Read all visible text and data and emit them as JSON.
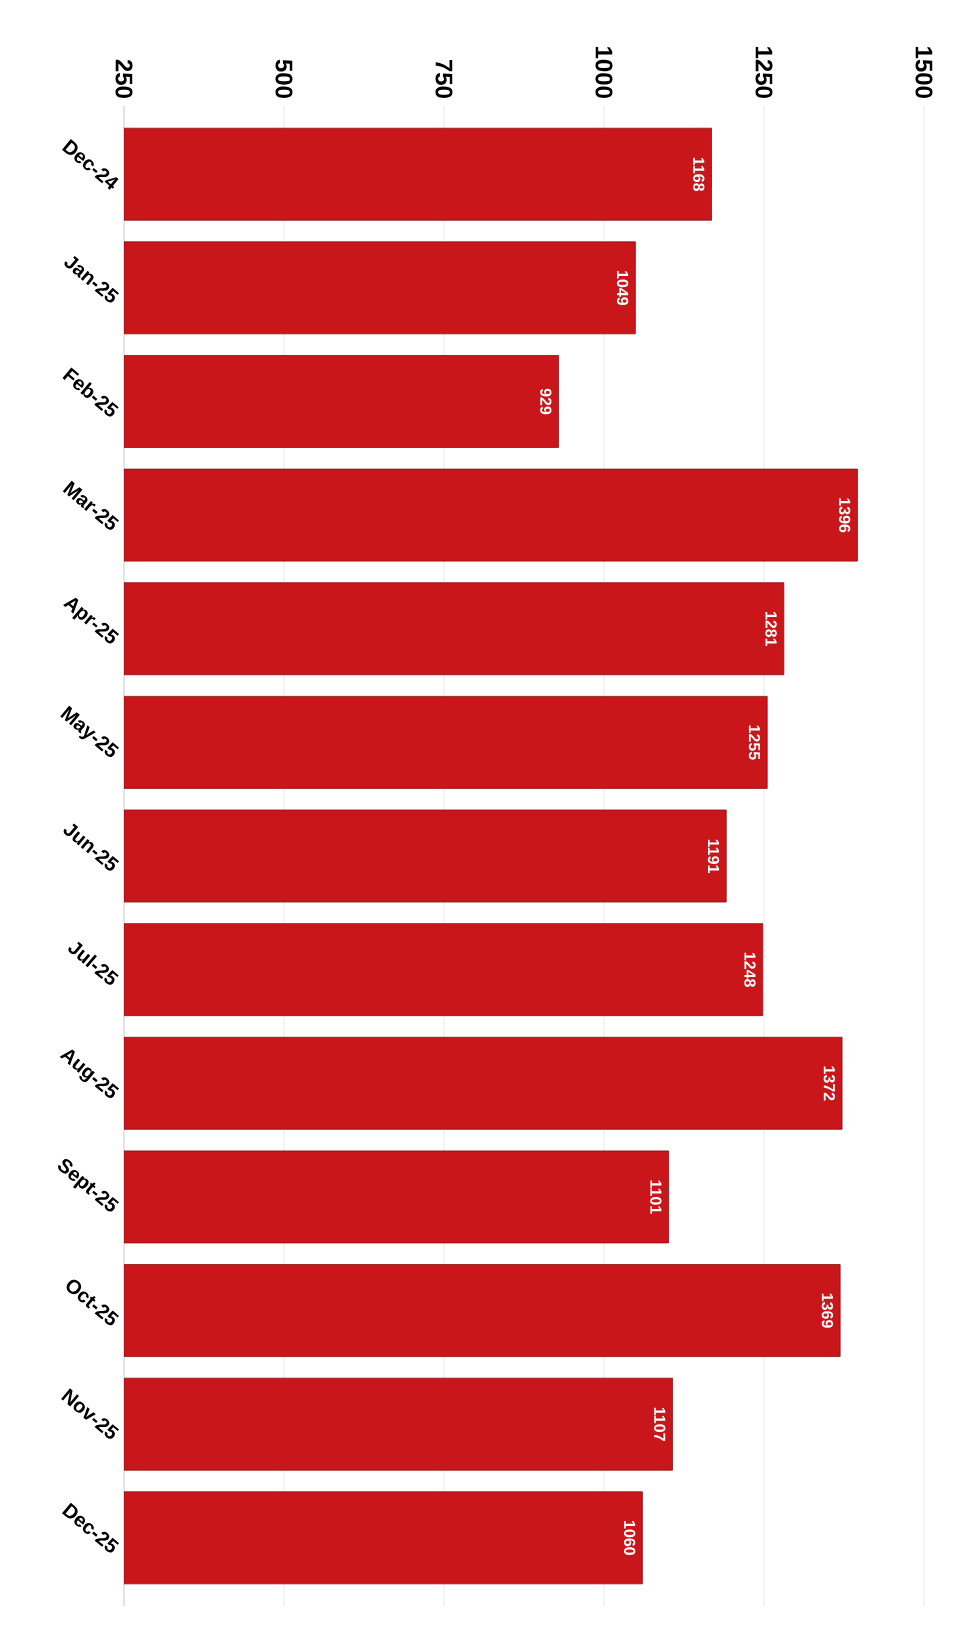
{
  "chart_data": {
    "type": "bar",
    "orientation": "horizontal",
    "categories": [
      "Dec-24",
      "Jan-25",
      "Feb-25",
      "Mar-25",
      "Apr-25",
      "May-25",
      "Jun-25",
      "Jul-25",
      "Aug-25",
      "Sept-25",
      "Oct-25",
      "Nov-25",
      "Dec-25"
    ],
    "values": [
      1168,
      1049,
      929,
      1396,
      1281,
      1255,
      1191,
      1248,
      1372,
      1101,
      1369,
      1107,
      1060
    ],
    "color": "#c8161a",
    "xlim": [
      250,
      1500
    ],
    "xticks": [
      250,
      500,
      750,
      1000,
      1250,
      1500
    ],
    "grid": "x",
    "data_labels": true
  }
}
